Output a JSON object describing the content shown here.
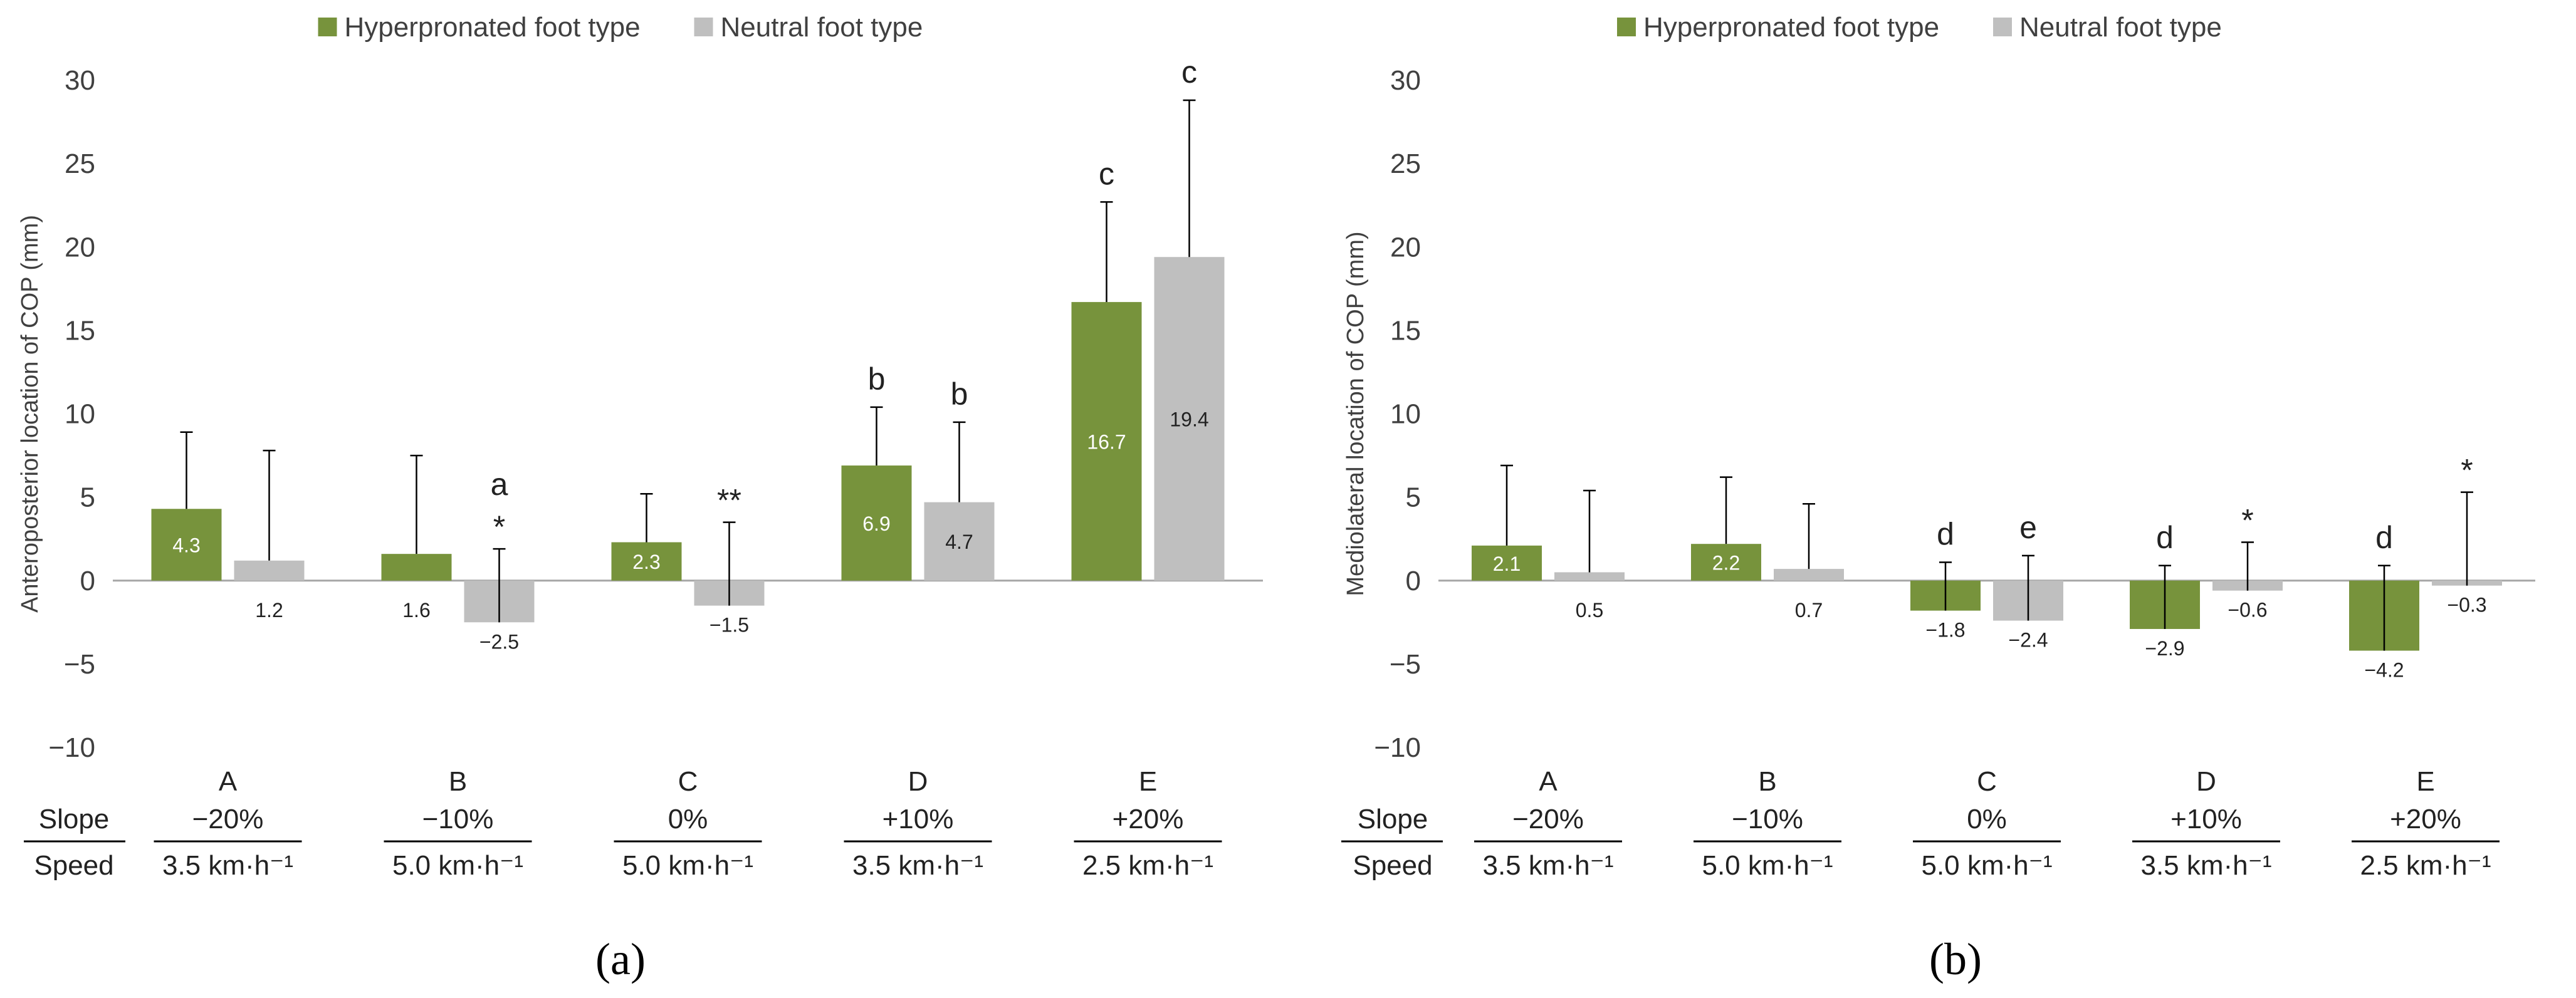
{
  "colors": {
    "hyper": "#77933C",
    "neutral": "#BFBFBF",
    "axis": "#A6A6A6",
    "text": "#404040"
  },
  "table": {
    "row_labels": {
      "slope": "Slope",
      "speed": "Speed"
    },
    "conditions": [
      {
        "letter": "A",
        "slope": "−20%",
        "speed": "3.5 km·h⁻¹"
      },
      {
        "letter": "B",
        "slope": "−10%",
        "speed": "5.0 km·h⁻¹"
      },
      {
        "letter": "C",
        "slope": "0%",
        "speed": "5.0 km·h⁻¹"
      },
      {
        "letter": "D",
        "slope": "+10%",
        "speed": "3.5 km·h⁻¹"
      },
      {
        "letter": "E",
        "slope": "+20%",
        "speed": "2.5 km·h⁻¹"
      }
    ]
  },
  "chart_data": [
    {
      "type": "bar",
      "panel": "(a)",
      "ylabel": "Anteroposterior  location of COP (mm)",
      "ylim": [
        -10,
        30
      ],
      "yticks": [
        -10,
        -5,
        0,
        5,
        10,
        15,
        20,
        25,
        30
      ],
      "yticklabels": [
        "−10",
        "−5",
        "0",
        "5",
        "10",
        "15",
        "20",
        "25",
        "30"
      ],
      "legend": [
        "Hyperpronated foot type",
        "Neutral foot type"
      ],
      "categories": [
        "A",
        "B",
        "C",
        "D",
        "E"
      ],
      "series": [
        {
          "name": "Hyperpronated foot type",
          "values": [
            4.3,
            1.6,
            2.3,
            6.9,
            16.7
          ],
          "labels": [
            "4.3",
            "1.6",
            "2.3",
            "6.9",
            "16.7"
          ],
          "error_upper": [
            4.6,
            5.9,
            2.9,
            3.5,
            6.0
          ],
          "annotations": [
            "",
            "",
            "",
            "b",
            "c"
          ]
        },
        {
          "name": "Neutral foot type",
          "values": [
            1.2,
            -2.5,
            -1.5,
            4.7,
            19.4
          ],
          "labels": [
            "1.2",
            "−2.5",
            "−1.5",
            "4.7",
            "19.4"
          ],
          "error_upper": [
            6.6,
            4.4,
            5.0,
            4.8,
            9.4
          ],
          "annotations": [
            "",
            "a\n*",
            "**",
            "b",
            "c"
          ]
        }
      ]
    },
    {
      "type": "bar",
      "panel": "(b)",
      "ylabel": "Mediolateral location of COP (mm)",
      "ylim": [
        -10,
        30
      ],
      "yticks": [
        -10,
        -5,
        0,
        5,
        10,
        15,
        20,
        25,
        30
      ],
      "yticklabels": [
        "−10",
        "−5",
        "0",
        "5",
        "10",
        "15",
        "20",
        "25",
        "30"
      ],
      "legend": [
        "Hyperpronated foot type",
        "Neutral foot type"
      ],
      "categories": [
        "A",
        "B",
        "C",
        "D",
        "E"
      ],
      "series": [
        {
          "name": "Hyperpronated foot type",
          "values": [
            2.1,
            2.2,
            -1.8,
            -2.9,
            -4.2
          ],
          "labels": [
            "2.1",
            "2.2",
            "−1.8",
            "−2.9",
            "−4.2"
          ],
          "error_upper": [
            4.8,
            4.0,
            2.9,
            3.8,
            5.1
          ],
          "annotations": [
            "",
            "",
            "d",
            "d",
            "d"
          ]
        },
        {
          "name": "Neutral foot type",
          "values": [
            0.5,
            0.7,
            -2.4,
            -0.6,
            -0.3
          ],
          "labels": [
            "0.5",
            "0.7",
            "−2.4",
            "−0.6",
            "−0.3"
          ],
          "error_upper": [
            4.9,
            3.9,
            3.9,
            2.9,
            5.6
          ],
          "annotations": [
            "",
            "",
            "e",
            "*",
            "*"
          ]
        }
      ]
    }
  ]
}
